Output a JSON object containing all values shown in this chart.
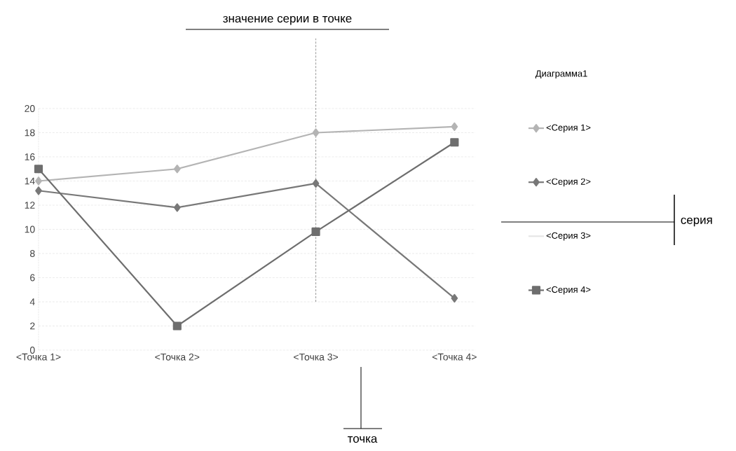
{
  "chart_data": {
    "type": "line",
    "legend_title": "Диаграмма1",
    "annotations": [
      "значение серии в точке",
      "серия",
      "точка"
    ],
    "categories": [
      "<Точка 1>",
      "<Точка 2>",
      "<Точка 3>",
      "<Точка 4>"
    ],
    "series": [
      {
        "name": "<Серия 1>",
        "color": "#b4b4b4",
        "marker": "diamond",
        "values": [
          14,
          15,
          18,
          18.5
        ]
      },
      {
        "name": "<Серия 2>",
        "color": "#787878",
        "marker": "diamond",
        "values": [
          13.2,
          11.8,
          13.8,
          4.3
        ]
      },
      {
        "name": "<Серия 3>",
        "color": "#e6e6e6",
        "marker": "none",
        "values": [
          null,
          null,
          null,
          null
        ]
      },
      {
        "name": "<Серия 4>",
        "color": "#6e6e6e",
        "marker": "square",
        "values": [
          15,
          2,
          9.8,
          17.2
        ]
      }
    ],
    "ylim": [
      0,
      20
    ],
    "yticks": [
      0,
      2,
      4,
      6,
      8,
      10,
      12,
      14,
      16,
      18,
      20
    ],
    "ref_lines": [
      {
        "axis": "x",
        "value": "<Точка 3>",
        "color": "#808080",
        "line_style": "dashed"
      }
    ],
    "grid": "y",
    "legend": "right"
  }
}
